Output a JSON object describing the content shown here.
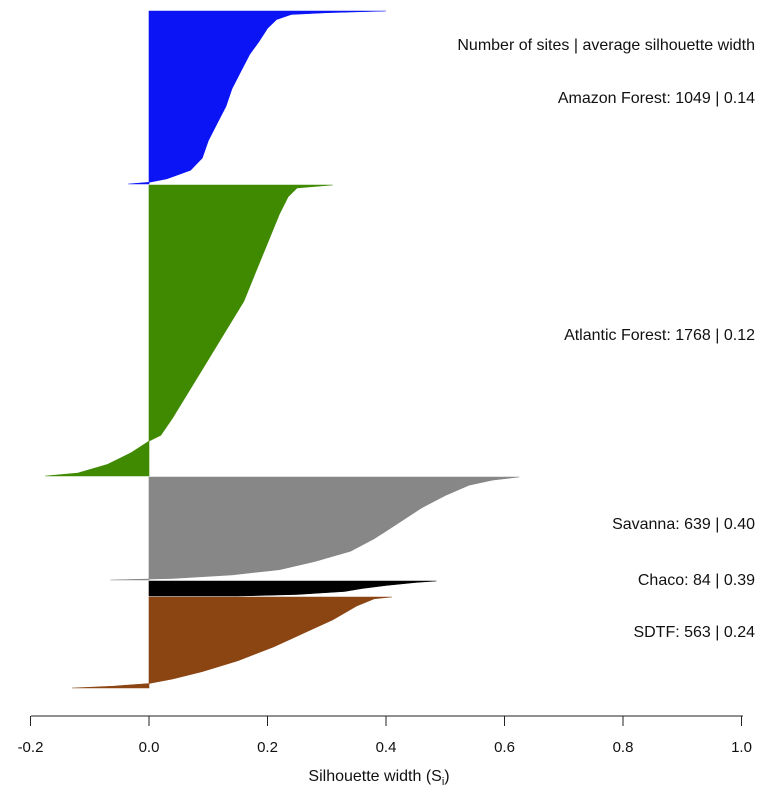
{
  "chart_data": {
    "type": "bar",
    "subtype": "silhouette-plot",
    "orientation": "horizontal",
    "title": "",
    "legend_header": "Number of sites | average silhouette width",
    "xlabel": "Silhouette width (S",
    "xlabel_subscript": "i",
    "xlabel_close": ")",
    "xlim": [
      -0.2,
      1.0
    ],
    "xticks": [
      -0.2,
      0.0,
      0.2,
      0.4,
      0.6,
      0.8,
      1.0
    ],
    "xtick_labels": [
      "-0.2",
      "0.0",
      "0.2",
      "0.4",
      "0.6",
      "0.8",
      "1.0"
    ],
    "grid": false,
    "clusters": [
      {
        "name": "Amazon Forest",
        "label": "Amazon Forest: 1049 | 0.14",
        "n_sites": 1049,
        "avg_width": 0.14,
        "color": "#0a14f5",
        "profile": [
          [
            0,
            0.4
          ],
          [
            0.01,
            0.3
          ],
          [
            0.02,
            0.24
          ],
          [
            0.05,
            0.215
          ],
          [
            0.1,
            0.2
          ],
          [
            0.18,
            0.185
          ],
          [
            0.25,
            0.17
          ],
          [
            0.35,
            0.155
          ],
          [
            0.45,
            0.14
          ],
          [
            0.55,
            0.13
          ],
          [
            0.65,
            0.115
          ],
          [
            0.75,
            0.1
          ],
          [
            0.85,
            0.09
          ],
          [
            0.92,
            0.07
          ],
          [
            0.97,
            0.03
          ],
          [
            0.99,
            0.0
          ],
          [
            1.0,
            -0.035
          ]
        ]
      },
      {
        "name": "Atlantic Forest",
        "label": "Atlantic Forest: 1768 | 0.12",
        "n_sites": 1768,
        "avg_width": 0.12,
        "color": "#3f8a00",
        "profile": [
          [
            0,
            0.31
          ],
          [
            0.01,
            0.25
          ],
          [
            0.04,
            0.235
          ],
          [
            0.1,
            0.22
          ],
          [
            0.2,
            0.2
          ],
          [
            0.3,
            0.18
          ],
          [
            0.4,
            0.16
          ],
          [
            0.5,
            0.13
          ],
          [
            0.6,
            0.1
          ],
          [
            0.7,
            0.07
          ],
          [
            0.8,
            0.04
          ],
          [
            0.86,
            0.02
          ],
          [
            0.88,
            0.0
          ],
          [
            0.92,
            -0.03
          ],
          [
            0.96,
            -0.07
          ],
          [
            0.99,
            -0.12
          ],
          [
            1.0,
            -0.175
          ]
        ]
      },
      {
        "name": "Savanna",
        "label": "Savanna: 639 | 0.40",
        "n_sites": 639,
        "avg_width": 0.4,
        "color": "#878787",
        "profile": [
          [
            0,
            0.625
          ],
          [
            0.03,
            0.58
          ],
          [
            0.08,
            0.54
          ],
          [
            0.18,
            0.5
          ],
          [
            0.3,
            0.46
          ],
          [
            0.45,
            0.42
          ],
          [
            0.6,
            0.38
          ],
          [
            0.72,
            0.34
          ],
          [
            0.82,
            0.28
          ],
          [
            0.9,
            0.22
          ],
          [
            0.95,
            0.14
          ],
          [
            0.985,
            0.04
          ],
          [
            1.0,
            -0.065
          ]
        ]
      },
      {
        "name": "Chaco",
        "label": "Chaco: 84 | 0.39",
        "n_sites": 84,
        "avg_width": 0.39,
        "color": "#000000",
        "profile": [
          [
            0,
            0.485
          ],
          [
            0.1,
            0.45
          ],
          [
            0.3,
            0.4
          ],
          [
            0.5,
            0.36
          ],
          [
            0.7,
            0.33
          ],
          [
            0.9,
            0.25
          ],
          [
            1.0,
            0.15
          ]
        ]
      },
      {
        "name": "SDTF",
        "label": "SDTF: 563 | 0.24",
        "n_sites": 563,
        "avg_width": 0.24,
        "color": "#8b4513",
        "profile": [
          [
            0,
            0.41
          ],
          [
            0.02,
            0.38
          ],
          [
            0.1,
            0.35
          ],
          [
            0.25,
            0.31
          ],
          [
            0.4,
            0.26
          ],
          [
            0.55,
            0.21
          ],
          [
            0.7,
            0.15
          ],
          [
            0.82,
            0.09
          ],
          [
            0.9,
            0.04
          ],
          [
            0.95,
            0.0
          ],
          [
            0.98,
            -0.06
          ],
          [
            1.0,
            -0.13
          ]
        ]
      }
    ]
  }
}
